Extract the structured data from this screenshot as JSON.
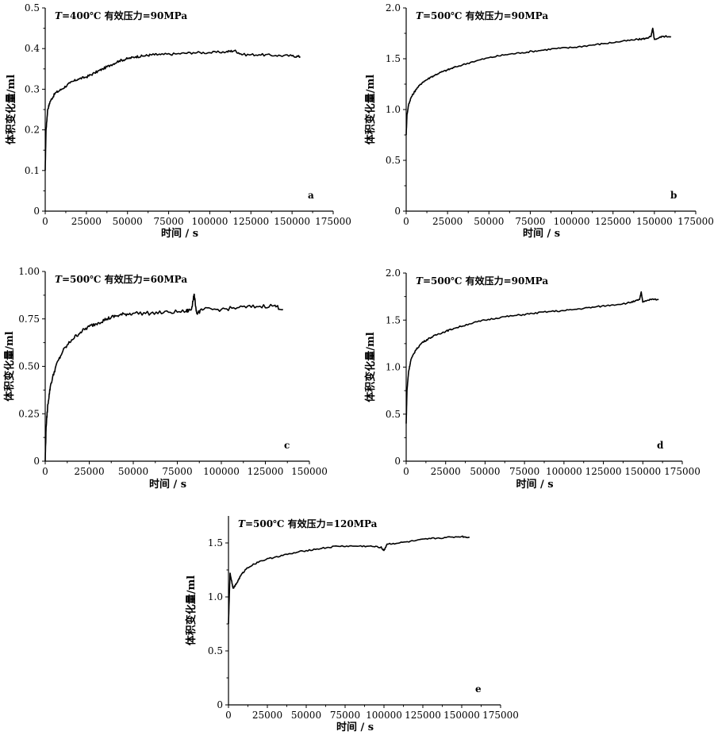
{
  "figure": {
    "xlabel": "时间 / s",
    "ylabel": "体积变化量/ml"
  },
  "chart_data": [
    {
      "id": "a",
      "type": "line",
      "letter": "a",
      "title_T": "T",
      "title_rest": "=400℃  有效压力=90MPa",
      "xlabel": "时间 / s",
      "ylabel": "体积变化量/ml",
      "xlim": [
        0,
        175000
      ],
      "ylim": [
        0,
        0.5
      ],
      "xticks": [
        0,
        25000,
        50000,
        75000,
        100000,
        125000,
        150000,
        175000
      ],
      "yticks": [
        0,
        0.1,
        0.2,
        0.3,
        0.4,
        0.5
      ],
      "xtick_labels": [
        "0",
        "25000",
        "50000",
        "75000",
        "100000",
        "125000",
        "150000",
        "175000"
      ],
      "ytick_labels": [
        "0",
        "0.1",
        "0.2",
        "0.3",
        "0.4",
        "0.5"
      ],
      "grid": false,
      "series": [
        {
          "x": [
            0,
            500,
            1500,
            3000,
            6000,
            10000,
            15000,
            20000,
            25000,
            30000,
            35000,
            40000,
            45000,
            50000,
            55000,
            60000,
            65000,
            70000,
            80000,
            90000,
            100000,
            110000,
            115000,
            120000,
            130000,
            140000,
            150000,
            155000
          ],
          "y": [
            0.1,
            0.2,
            0.25,
            0.27,
            0.29,
            0.3,
            0.315,
            0.325,
            0.33,
            0.34,
            0.35,
            0.36,
            0.37,
            0.375,
            0.38,
            0.382,
            0.385,
            0.385,
            0.387,
            0.39,
            0.39,
            0.392,
            0.395,
            0.385,
            0.385,
            0.383,
            0.382,
            0.38
          ]
        }
      ]
    },
    {
      "id": "b",
      "type": "line",
      "letter": "b",
      "title_T": "T",
      "title_rest": "=500℃  有效压力=90MPa",
      "xlabel": "时间 / s",
      "ylabel": "体积变化量/ml",
      "xlim": [
        0,
        175000
      ],
      "ylim": [
        0,
        2.0
      ],
      "xticks": [
        0,
        25000,
        50000,
        75000,
        100000,
        125000,
        150000,
        175000
      ],
      "yticks": [
        0,
        0.5,
        1.0,
        1.5,
        2.0
      ],
      "xtick_labels": [
        "0",
        "25000",
        "50000",
        "75000",
        "100000",
        "125000",
        "150000",
        "175000"
      ],
      "ytick_labels": [
        "0",
        "0.5",
        "1.0",
        "1.5",
        "2.0"
      ],
      "grid": false,
      "series": [
        {
          "x": [
            0,
            500,
            1500,
            3000,
            6000,
            10000,
            15000,
            20000,
            25000,
            30000,
            40000,
            50000,
            60000,
            70000,
            80000,
            90000,
            100000,
            110000,
            120000,
            130000,
            140000,
            145000,
            148000,
            149000,
            150000,
            155000,
            160000
          ],
          "y": [
            0.75,
            0.95,
            1.05,
            1.12,
            1.2,
            1.27,
            1.32,
            1.36,
            1.39,
            1.42,
            1.47,
            1.51,
            1.54,
            1.56,
            1.58,
            1.6,
            1.61,
            1.63,
            1.65,
            1.67,
            1.69,
            1.7,
            1.72,
            1.8,
            1.69,
            1.72,
            1.72
          ]
        }
      ]
    },
    {
      "id": "c",
      "type": "line",
      "letter": "c",
      "title_T": "T",
      "title_rest": "=500℃  有效压力=60MPa",
      "xlabel": "时间 / s",
      "ylabel": "体积变化量/ml",
      "xlim": [
        0,
        150000
      ],
      "ylim": [
        0,
        1.0
      ],
      "xticks": [
        0,
        25000,
        50000,
        75000,
        100000,
        125000,
        150000
      ],
      "yticks": [
        0,
        0.25,
        0.5,
        0.75,
        1.0
      ],
      "xtick_labels": [
        "0",
        "25000",
        "50000",
        "75000",
        "100000",
        "125000",
        "150000"
      ],
      "ytick_labels": [
        "0",
        "0.25",
        "0.50",
        "0.75",
        "1.00"
      ],
      "grid": false,
      "series": [
        {
          "x": [
            0,
            500,
            1500,
            3000,
            6000,
            10000,
            15000,
            20000,
            25000,
            30000,
            35000,
            40000,
            45000,
            50000,
            60000,
            70000,
            80000,
            83000,
            84500,
            86000,
            90000,
            100000,
            110000,
            120000,
            130000,
            135000
          ],
          "y": [
            0.0,
            0.18,
            0.3,
            0.4,
            0.5,
            0.58,
            0.64,
            0.68,
            0.71,
            0.73,
            0.75,
            0.765,
            0.775,
            0.78,
            0.78,
            0.785,
            0.79,
            0.8,
            0.88,
            0.78,
            0.8,
            0.8,
            0.81,
            0.815,
            0.82,
            0.8
          ]
        }
      ]
    },
    {
      "id": "d",
      "type": "line",
      "letter": "d",
      "title_T": "T",
      "title_rest": "=500℃  有效压力=90MPa",
      "xlabel": "时间 / s",
      "ylabel": "体积变化量/ml",
      "xlim": [
        0,
        175000
      ],
      "ylim": [
        0,
        2.0
      ],
      "xticks": [
        0,
        25000,
        50000,
        75000,
        100000,
        125000,
        150000,
        175000
      ],
      "xtick_labels": [
        "0",
        "25000",
        "50000",
        "75000",
        "100000",
        "125000",
        "150000",
        "175000"
      ],
      "yticks": [
        0,
        0.5,
        1.0,
        1.5,
        2.0
      ],
      "ytick_labels": [
        "0",
        "0.5",
        "1.0",
        "1.5",
        "2.0"
      ],
      "grid": false,
      "series": [
        {
          "x": [
            0,
            500,
            1500,
            3000,
            6000,
            10000,
            15000,
            20000,
            25000,
            30000,
            40000,
            50000,
            60000,
            70000,
            80000,
            90000,
            100000,
            110000,
            120000,
            130000,
            140000,
            145000,
            148000,
            149000,
            150000,
            155000,
            160000
          ],
          "y": [
            0.4,
            0.75,
            0.95,
            1.08,
            1.18,
            1.26,
            1.31,
            1.35,
            1.38,
            1.41,
            1.46,
            1.5,
            1.53,
            1.55,
            1.57,
            1.59,
            1.6,
            1.62,
            1.64,
            1.66,
            1.68,
            1.7,
            1.72,
            1.8,
            1.69,
            1.72,
            1.72
          ]
        }
      ]
    },
    {
      "id": "e",
      "type": "line",
      "letter": "e",
      "title_T": "T",
      "title_rest": "=500℃  有效压力=120MPa",
      "xlabel": "时间 / s",
      "ylabel": "体积变化量/ml",
      "xlim": [
        0,
        175000
      ],
      "ylim": [
        0,
        1.75
      ],
      "xticks": [
        0,
        25000,
        50000,
        75000,
        100000,
        125000,
        150000,
        175000
      ],
      "xtick_labels": [
        "0",
        "25000",
        "50000",
        "75000",
        "100000",
        "125000",
        "150000",
        "175000"
      ],
      "yticks": [
        0,
        0.5,
        1.0,
        1.5
      ],
      "ytick_labels": [
        "0",
        "0.5",
        "1.0",
        "1.5"
      ],
      "grid": false,
      "series": [
        {
          "x": [
            0,
            500,
            1000,
            2000,
            3000,
            5000,
            8000,
            12000,
            20000,
            30000,
            40000,
            50000,
            60000,
            70000,
            80000,
            90000,
            98000,
            100000,
            102000,
            110000,
            120000,
            130000,
            140000,
            150000,
            155000
          ],
          "y": [
            0.75,
            1.0,
            1.22,
            1.15,
            1.08,
            1.12,
            1.2,
            1.27,
            1.33,
            1.37,
            1.4,
            1.43,
            1.45,
            1.47,
            1.47,
            1.47,
            1.46,
            1.43,
            1.49,
            1.5,
            1.52,
            1.54,
            1.55,
            1.56,
            1.55
          ]
        }
      ]
    }
  ]
}
